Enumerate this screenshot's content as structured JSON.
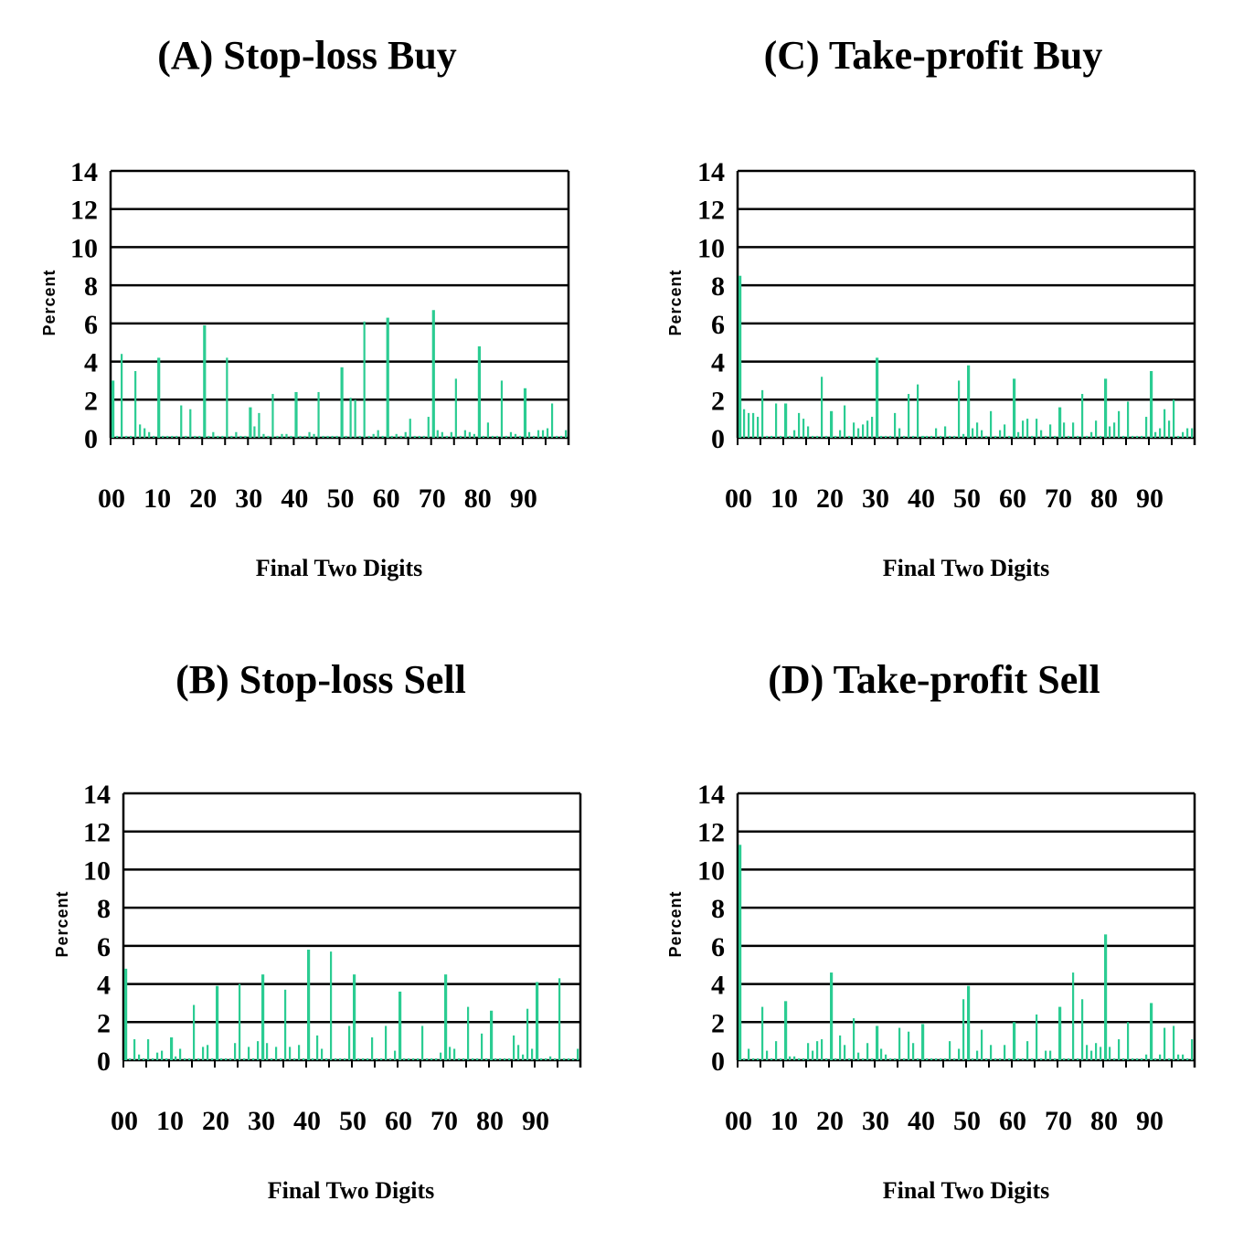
{
  "colors": {
    "bar": "#2bcc92",
    "grid": "#000000",
    "text": "#000000"
  },
  "chart_data": [
    {
      "type": "bar",
      "title": "(A) Stop-loss Buy",
      "xlabel": "Final Two Digits",
      "ylabel": "Percent",
      "ylim": [
        0,
        14
      ],
      "y_ticks": [
        "0",
        "2",
        "4",
        "6",
        "8",
        "10",
        "12",
        "14"
      ],
      "x_tick_labels": [
        "00",
        "10",
        "20",
        "30",
        "40",
        "50",
        "60",
        "70",
        "80",
        "90"
      ],
      "grid": true,
      "values": [
        3.0,
        0.1,
        4.4,
        0.1,
        0.1,
        3.5,
        0.7,
        0.5,
        0.3,
        0.1,
        4.2,
        0.1,
        0.1,
        0.1,
        0.1,
        1.7,
        0.1,
        1.5,
        0.1,
        0.1,
        5.9,
        0.1,
        0.3,
        0.1,
        0.1,
        4.2,
        0.1,
        0.3,
        0.1,
        0.1,
        1.6,
        0.6,
        1.3,
        0.2,
        0.1,
        2.3,
        0.1,
        0.2,
        0.2,
        0.1,
        2.4,
        0.1,
        0.1,
        0.3,
        0.2,
        2.4,
        0.1,
        0.1,
        0.1,
        0.1,
        3.7,
        0.1,
        2.1,
        2.0,
        0.1,
        6.1,
        0.1,
        0.2,
        0.4,
        0.1,
        6.3,
        0.1,
        0.2,
        0.1,
        0.3,
        1.0,
        0.1,
        0.1,
        0.1,
        1.1,
        6.7,
        0.4,
        0.3,
        0.1,
        0.3,
        3.1,
        0.1,
        0.4,
        0.3,
        0.2,
        4.8,
        0.1,
        0.8,
        0.1,
        0.1,
        3.0,
        0.1,
        0.3,
        0.2,
        0.1,
        2.6,
        0.3,
        0.1,
        0.4,
        0.4,
        0.5,
        1.8,
        0.1,
        0.1,
        0.4
      ]
    },
    {
      "type": "bar",
      "title": "(B) Stop-loss Sell",
      "xlabel": "Final Two Digits",
      "ylabel": "Percent",
      "ylim": [
        0,
        14
      ],
      "y_ticks": [
        "0",
        "2",
        "4",
        "6",
        "8",
        "10",
        "12",
        "14"
      ],
      "x_tick_labels": [
        "00",
        "10",
        "20",
        "30",
        "40",
        "50",
        "60",
        "70",
        "80",
        "90"
      ],
      "grid": true,
      "values": [
        4.8,
        0.1,
        1.1,
        0.3,
        0.1,
        1.1,
        0.1,
        0.4,
        0.5,
        0.1,
        1.2,
        0.2,
        0.6,
        0.1,
        0.1,
        2.9,
        0.1,
        0.7,
        0.8,
        0.1,
        3.9,
        0.1,
        0.1,
        0.1,
        0.9,
        4.0,
        0.1,
        0.7,
        0.1,
        1.0,
        4.5,
        0.9,
        0.1,
        0.7,
        0.1,
        3.7,
        0.7,
        0.1,
        0.8,
        0.1,
        5.8,
        0.1,
        1.3,
        0.6,
        0.1,
        5.7,
        0.1,
        0.1,
        0.1,
        1.8,
        4.5,
        0.1,
        0.1,
        0.1,
        1.2,
        0.1,
        0.1,
        1.8,
        0.1,
        0.5,
        3.6,
        0.1,
        0.1,
        0.1,
        0.1,
        1.8,
        0.1,
        0.1,
        0.1,
        0.4,
        4.5,
        0.7,
        0.6,
        0.1,
        0.1,
        2.8,
        0.1,
        0.1,
        1.4,
        0.1,
        2.6,
        0.1,
        0.1,
        0.1,
        0.1,
        1.3,
        0.8,
        0.3,
        2.7,
        0.6,
        4.1,
        0.1,
        0.1,
        0.2,
        0.1,
        4.3,
        0.1,
        0.1,
        0.1,
        0.6
      ]
    },
    {
      "type": "bar",
      "title": "(C) Take-profit Buy",
      "xlabel": "Final Two Digits",
      "ylabel": "Percent",
      "ylim": [
        0,
        14
      ],
      "y_ticks": [
        "0",
        "2",
        "4",
        "6",
        "8",
        "10",
        "12",
        "14"
      ],
      "x_tick_labels": [
        "00",
        "10",
        "20",
        "30",
        "40",
        "50",
        "60",
        "70",
        "80",
        "90"
      ],
      "grid": true,
      "values": [
        8.5,
        1.5,
        1.3,
        1.3,
        1.1,
        2.5,
        0.1,
        0.1,
        1.8,
        0.1,
        1.8,
        0.1,
        0.4,
        1.3,
        1.0,
        0.6,
        0.1,
        0.1,
        3.2,
        0.1,
        1.4,
        0.1,
        0.4,
        1.7,
        0.1,
        0.8,
        0.5,
        0.7,
        0.9,
        1.1,
        4.2,
        0.1,
        0.1,
        0.1,
        1.3,
        0.5,
        0.1,
        2.3,
        0.1,
        2.8,
        0.1,
        0.1,
        0.1,
        0.5,
        0.1,
        0.6,
        0.1,
        0.1,
        3.0,
        0.2,
        3.8,
        0.5,
        0.8,
        0.4,
        0.1,
        1.4,
        0.1,
        0.4,
        0.7,
        0.1,
        3.1,
        0.3,
        0.9,
        1.0,
        0.1,
        1.0,
        0.4,
        0.1,
        0.7,
        0.1,
        1.6,
        0.8,
        0.1,
        0.8,
        0.1,
        2.3,
        0.1,
        0.3,
        0.9,
        0.1,
        3.1,
        0.6,
        0.8,
        1.4,
        0.1,
        1.9,
        0.1,
        0.1,
        0.1,
        1.1,
        3.5,
        0.3,
        0.5,
        1.5,
        0.9,
        2.0,
        0.1,
        0.3,
        0.5,
        0.5
      ]
    },
    {
      "type": "bar",
      "title": "(D) Take-profit Sell",
      "xlabel": "Final Two Digits",
      "ylabel": "Percent",
      "ylim": [
        0,
        14
      ],
      "y_ticks": [
        "0",
        "2",
        "4",
        "6",
        "8",
        "10",
        "12",
        "14"
      ],
      "x_tick_labels": [
        "00",
        "10",
        "20",
        "30",
        "40",
        "50",
        "60",
        "70",
        "80",
        "90"
      ],
      "grid": true,
      "values": [
        11.3,
        0.1,
        0.6,
        0.1,
        0.1,
        2.8,
        0.5,
        0.1,
        1.0,
        0.1,
        3.1,
        0.2,
        0.2,
        0.1,
        0.1,
        0.9,
        0.5,
        1.0,
        1.1,
        0.1,
        4.6,
        0.1,
        1.3,
        0.8,
        0.1,
        2.2,
        0.4,
        0.1,
        0.9,
        0.1,
        1.8,
        0.6,
        0.3,
        0.1,
        0.1,
        1.7,
        0.1,
        1.5,
        0.9,
        0.1,
        1.9,
        0.1,
        0.1,
        0.1,
        0.1,
        0.1,
        1.0,
        0.1,
        0.6,
        3.2,
        3.9,
        0.1,
        0.5,
        1.6,
        0.1,
        0.8,
        0.1,
        0.1,
        0.8,
        0.1,
        2.0,
        0.1,
        0.1,
        1.0,
        0.1,
        2.4,
        0.1,
        0.5,
        0.5,
        0.1,
        2.8,
        0.1,
        0.1,
        4.6,
        0.1,
        3.2,
        0.8,
        0.5,
        0.9,
        0.7,
        6.6,
        0.7,
        0.1,
        1.1,
        0.1,
        2.0,
        0.1,
        0.1,
        0.1,
        0.3,
        3.0,
        0.1,
        0.3,
        1.7,
        0.1,
        1.8,
        0.3,
        0.3,
        0.1,
        1.1
      ]
    }
  ]
}
